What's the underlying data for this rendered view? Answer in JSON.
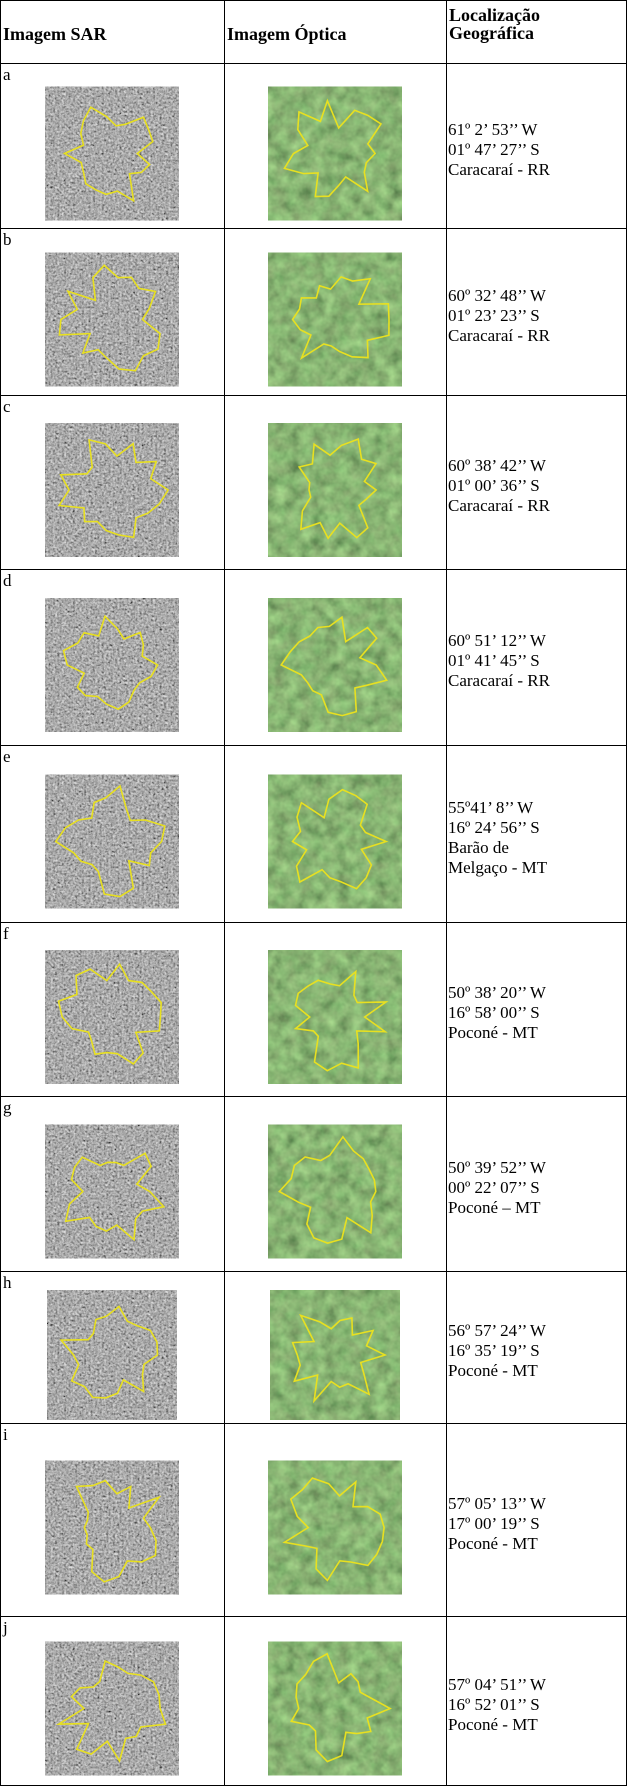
{
  "header": [
    "Imagem SAR",
    "Imagem Óptica",
    "Localização Geográfica"
  ],
  "rows": [
    {
      "label": "a",
      "location": [
        "61º 2’ 53’’ W",
        "01º 47’ 27’’ S",
        "Caracaraí - RR"
      ]
    },
    {
      "label": "b",
      "location": [
        "60º 32’ 48’’ W",
        "01º 23’ 23’’ S",
        "Caracaraí - RR"
      ]
    },
    {
      "label": "c",
      "location": [
        "60º 38’ 42’’ W",
        "01º 00’ 36’’ S",
        "Caracaraí - RR"
      ]
    },
    {
      "label": "d",
      "location": [
        "60º 51’ 12’’ W",
        "01º 41’ 45’’ S",
        "Caracaraí - RR"
      ]
    },
    {
      "label": "e",
      "location": [
        "55º41’ 8’’ W",
        "16º 24’ 56’’ S",
        "Barão de",
        "Melgaço - MT"
      ]
    },
    {
      "label": "f",
      "location": [
        "50º 38’ 20’’ W",
        "16º 58’ 00’’ S",
        "Poconé - MT"
      ]
    },
    {
      "label": "g",
      "location": [
        "50º 39’ 52’’ W",
        "00º 22’ 07’’ S",
        "Poconé – MT"
      ]
    },
    {
      "label": "h",
      "location": [
        "56º 57’ 24’’ W",
        "16º 35’ 19’’ S",
        "Poconé - MT"
      ]
    },
    {
      "label": "i",
      "location": [
        "57º 05’ 13’’ W",
        "17º 00’ 19’’ S",
        "Poconé - MT"
      ]
    },
    {
      "label": "j",
      "location": [
        "57º 04’ 51’’ W",
        "16º 52’ 01’’ S",
        "Poconé - MT"
      ]
    }
  ]
}
